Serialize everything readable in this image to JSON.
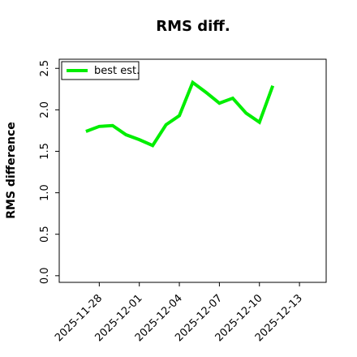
{
  "chart_data": {
    "type": "line",
    "title": "RMS diff.",
    "y_label": "RMS difference",
    "x": [
      "2025-11-27",
      "2025-11-28",
      "2025-11-29",
      "2025-11-30",
      "2025-12-01",
      "2025-12-02",
      "2025-12-03",
      "2025-12-04",
      "2025-12-05",
      "2025-12-06",
      "2025-12-07",
      "2025-12-08",
      "2025-12-09",
      "2025-12-10",
      "2025-12-11"
    ],
    "series": [
      {
        "name": "best est.",
        "color": "#00ee00",
        "values": [
          1.74,
          1.8,
          1.81,
          1.7,
          1.64,
          1.57,
          1.82,
          1.93,
          2.33,
          2.21,
          2.08,
          2.14,
          1.96,
          1.85,
          2.29
        ]
      }
    ],
    "xlim": [
      "2025-11-25",
      "2025-12-15"
    ],
    "xticks": [
      "2025-11-28",
      "2025-12-01",
      "2025-12-04",
      "2025-12-07",
      "2025-12-10",
      "2025-12-13"
    ],
    "ylim": [
      -0.08,
      2.61
    ],
    "yticks": [
      {
        "value": 0,
        "label": "0.0"
      },
      {
        "value": 0.5,
        "label": "0.5"
      },
      {
        "value": 1,
        "label": "1.0"
      },
      {
        "value": 1.5,
        "label": "1.5"
      },
      {
        "value": 2,
        "label": "2.0"
      },
      {
        "value": 2.5,
        "label": "2.5"
      }
    ],
    "legend": "upper left",
    "grid": false
  }
}
